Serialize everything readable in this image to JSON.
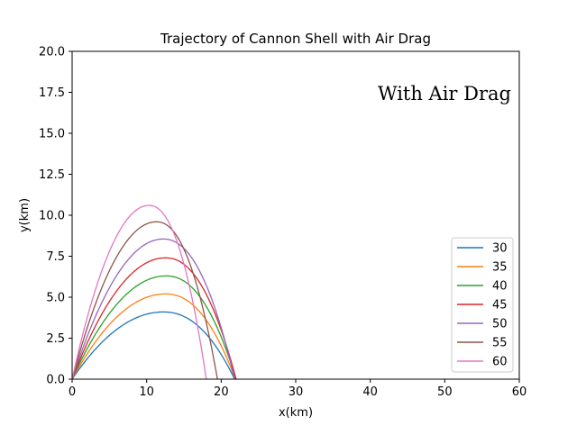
{
  "chart_data": {
    "type": "line",
    "title": "Trajectory of Cannon Shell with Air Drag",
    "xlabel": "x(km)",
    "ylabel": "y(km)",
    "xlim": [
      0,
      60
    ],
    "ylim": [
      0,
      20
    ],
    "xticks": [
      "0",
      "10",
      "20",
      "30",
      "40",
      "50",
      "60"
    ],
    "yticks": [
      "0.0",
      "2.5",
      "5.0",
      "7.5",
      "10.0",
      "12.5",
      "15.0",
      "17.5",
      "20.0"
    ],
    "annotation": "With Air Drag",
    "legend_position": "lower-right",
    "grid": false,
    "series": [
      {
        "name": "30",
        "color": "#1f77b4",
        "peak_x": 12.2,
        "peak_y": 4.1,
        "range_x": 21.8
      },
      {
        "name": "35",
        "color": "#ff7f0e",
        "peak_x": 12.5,
        "peak_y": 5.2,
        "range_x": 21.9
      },
      {
        "name": "40",
        "color": "#2ca02c",
        "peak_x": 12.6,
        "peak_y": 6.3,
        "range_x": 22.0
      },
      {
        "name": "45",
        "color": "#d62728",
        "peak_x": 12.5,
        "peak_y": 7.4,
        "range_x": 22.0
      },
      {
        "name": "50",
        "color": "#9467bd",
        "peak_x": 12.2,
        "peak_y": 8.55,
        "range_x": 21.8
      },
      {
        "name": "55",
        "color": "#8c564b",
        "peak_x": 11.3,
        "peak_y": 9.6,
        "range_x": 19.5
      },
      {
        "name": "60",
        "color": "#e377c2",
        "peak_x": 10.3,
        "peak_y": 10.6,
        "range_x": 18.0
      }
    ]
  }
}
